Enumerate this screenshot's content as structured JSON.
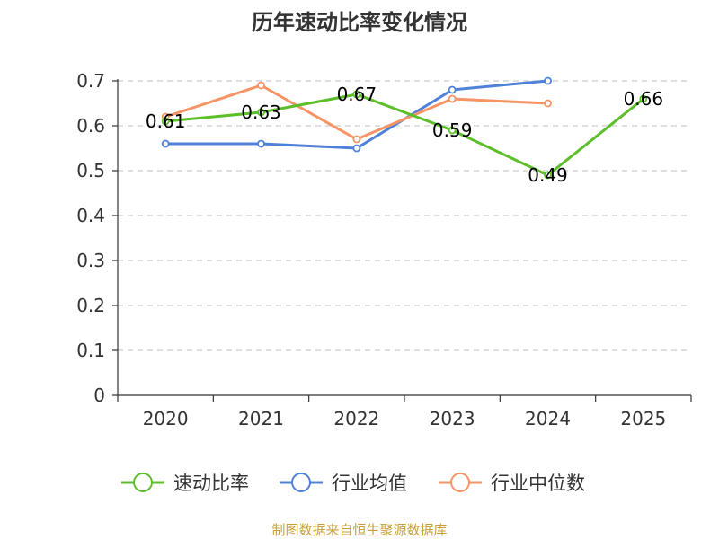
{
  "colors": {
    "速动比率": "#5cbf2a",
    "行业均值": "#4f81d9",
    "行业中位数": "#f79465",
    "axis": "#333333",
    "grid": "#cccccc",
    "source": "#c8a03a"
  },
  "chart_data": {
    "type": "line",
    "title": "历年速动比率变化情况",
    "xlabel": "",
    "ylabel": "",
    "categories": [
      "2020",
      "2021",
      "2022",
      "2023",
      "2024",
      "2025"
    ],
    "ylim": [
      0,
      0.7
    ],
    "yticks": [
      "0",
      "0.1",
      "0.2",
      "0.3",
      "0.4",
      "0.5",
      "0.6",
      "0.7"
    ],
    "grid": true,
    "legend": "bottom",
    "series": [
      {
        "name": "速动比率",
        "values": [
          0.61,
          0.63,
          0.67,
          0.59,
          0.49,
          0.66
        ],
        "labels": [
          "0.61",
          "0.63",
          "0.67",
          "0.59",
          "0.49",
          "0.66"
        ],
        "show_labels": true
      },
      {
        "name": "行业均值",
        "values": [
          0.56,
          0.56,
          0.55,
          0.68,
          0.7,
          null
        ],
        "show_labels": false
      },
      {
        "name": "行业中位数",
        "values": [
          0.62,
          0.69,
          0.57,
          0.66,
          0.65,
          null
        ],
        "show_labels": false
      }
    ]
  },
  "footer": {
    "source_text": "制图数据来自恒生聚源数据库"
  }
}
